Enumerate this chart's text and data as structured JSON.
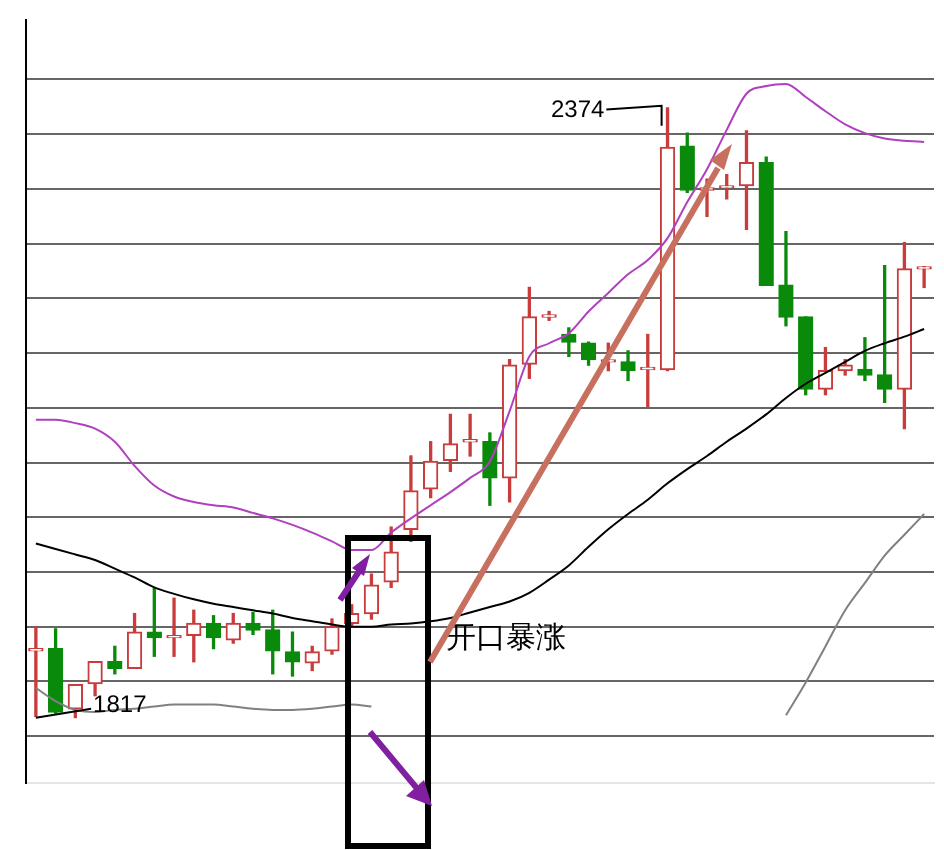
{
  "chart_data": {
    "type": "candlestick",
    "categories": [
      null,
      null,
      null,
      null,
      null,
      null,
      null,
      null,
      null,
      null,
      null,
      null,
      null,
      null,
      null,
      null,
      null,
      null,
      null,
      null,
      null,
      null,
      null,
      null,
      null,
      null,
      null,
      null,
      null,
      null,
      null,
      null,
      null,
      null,
      null,
      null,
      null,
      null,
      null,
      null,
      null,
      null,
      null,
      null,
      null,
      null
    ],
    "ohlc": [
      [
        1878,
        1900,
        1818,
        1879
      ],
      [
        1880,
        1898,
        1821,
        1822
      ],
      [
        1825,
        1847,
        1817,
        1847
      ],
      [
        1848,
        1868,
        1837,
        1868
      ],
      [
        1868,
        1882,
        1857,
        1862
      ],
      [
        1862,
        1912,
        1862,
        1895
      ],
      [
        1895,
        1935,
        1873,
        1890
      ],
      [
        1890,
        1926,
        1873,
        1891
      ],
      [
        1892,
        1915,
        1868,
        1903
      ],
      [
        1903,
        1910,
        1880,
        1890
      ],
      [
        1888,
        1912,
        1885,
        1903
      ],
      [
        1903,
        1913,
        1893,
        1897
      ],
      [
        1897,
        1915,
        1857,
        1878
      ],
      [
        1877,
        1895,
        1855,
        1868
      ],
      [
        1867,
        1882,
        1860,
        1877
      ],
      [
        1878,
        1907,
        1875,
        1900
      ],
      [
        1903,
        1920,
        1900,
        1912
      ],
      [
        1912,
        1948,
        1907,
        1938
      ],
      [
        1941,
        1991,
        1936,
        1968
      ],
      [
        1989,
        2056,
        1978,
        2024
      ],
      [
        2026,
        2069,
        2018,
        2051
      ],
      [
        2052,
        2094,
        2042,
        2067
      ],
      [
        2069,
        2094,
        2056,
        2070
      ],
      [
        2069,
        2077,
        2011,
        2036
      ],
      [
        2036,
        2144,
        2014,
        2139
      ],
      [
        2140,
        2210,
        2127,
        2183
      ],
      [
        2183,
        2188,
        2180,
        2184
      ],
      [
        2167,
        2173,
        2147,
        2160
      ],
      [
        2159,
        2160,
        2139,
        2144
      ],
      [
        2142,
        2159,
        2134,
        2143
      ],
      [
        2142,
        2152,
        2125,
        2134
      ],
      [
        2135,
        2167,
        2101,
        2136
      ],
      [
        2135,
        2374,
        2134,
        2338
      ],
      [
        2339,
        2351,
        2297,
        2299
      ],
      [
        2299,
        2309,
        2275,
        2301
      ],
      [
        2301,
        2313,
        2291,
        2302
      ],
      [
        2303,
        2353,
        2263,
        2324
      ],
      [
        2324,
        2329,
        2212,
        2212
      ],
      [
        2212,
        2261,
        2175,
        2183
      ],
      [
        2183,
        2183,
        2112,
        2117
      ],
      [
        2117,
        2155,
        2112,
        2134
      ],
      [
        2134,
        2144,
        2130,
        2139
      ],
      [
        2135,
        2164,
        2125,
        2130
      ],
      [
        2130,
        2230,
        2105,
        2117
      ],
      [
        2117,
        2251,
        2081,
        2227
      ],
      [
        2227,
        2229,
        2210,
        2228
      ]
    ],
    "colors": [
      "#c83c3c",
      "#0a8a0a",
      "#c83c3c",
      "#c83c3c",
      "#0a8a0a",
      "#c83c3c",
      "#0a8a0a",
      "#c83c3c",
      "#c83c3c",
      "#0a8a0a",
      "#c83c3c",
      "#0a8a0a",
      "#0a8a0a",
      "#0a8a0a",
      "#c83c3c",
      "#c83c3c",
      "#c83c3c",
      "#c83c3c",
      "#c83c3c",
      "#c83c3c",
      "#c83c3c",
      "#c83c3c",
      "#c83c3c",
      "#0a8a0a",
      "#c83c3c",
      "#c83c3c",
      "#c83c3c",
      "#0a8a0a",
      "#0a8a0a",
      "#c83c3c",
      "#0a8a0a",
      "#c83c3c",
      "#c83c3c",
      "#0a8a0a",
      "#c83c3c",
      "#c83c3c",
      "#c83c3c",
      "#0a8a0a",
      "#0a8a0a",
      "#0a8a0a",
      "#c83c3c",
      "#c83c3c",
      "#0a8a0a",
      "#0a8a0a",
      "#c83c3c",
      "#c83c3c"
    ],
    "series": [
      {
        "type": "line",
        "color": "#b040c0",
        "values": [
          2089,
          2089,
          2086,
          2081,
          2069,
          2047,
          2029,
          2019,
          2014,
          2011,
          2009,
          2004,
          1999,
          1993,
          1986,
          1978,
          1970,
          1970,
          1986,
          1999,
          2011,
          2023,
          2036,
          2051,
          2097,
          2147,
          2159,
          2168,
          2188,
          2205,
          2222,
          2235,
          2255,
          2288,
          2318,
          2354,
          2387,
          2394,
          2396,
          2384,
          2371,
          2359,
          2351,
          2346,
          2344,
          2343
        ]
      },
      {
        "type": "line",
        "color": "#000000",
        "values": [
          1976,
          1971,
          1966,
          1961,
          1953,
          1945,
          1936,
          1930,
          1925,
          1921,
          1918,
          1915,
          1912,
          1908,
          1905,
          1902,
          1900,
          1900,
          1902,
          1903,
          1905,
          1908,
          1913,
          1918,
          1923,
          1931,
          1943,
          1956,
          1973,
          1989,
          2003,
          2016,
          2031,
          2044,
          2056,
          2069,
          2081,
          2094,
          2109,
          2122,
          2132,
          2142,
          2152,
          2159,
          2165,
          2172
        ]
      },
      {
        "type": "line",
        "color": "#808080",
        "values": [
          1844,
          1832,
          1824,
          1822,
          1824,
          1825,
          1827,
          1829,
          1829,
          1829,
          1827,
          1825,
          1824,
          1824,
          1825,
          1827,
          1829,
          1827,
          null,
          null,
          null,
          null,
          null,
          null,
          null,
          null,
          null,
          null,
          null,
          null,
          null,
          null,
          null,
          null,
          null,
          null,
          null,
          null,
          1819,
          1849,
          1882,
          1915,
          1940,
          1965,
          1984,
          2003
        ]
      }
    ],
    "ylim": [
      1757,
      2454
    ],
    "yticks": [
      {
        "value": 1800,
        "label": null
      },
      {
        "value": 1850,
        "label": null
      },
      {
        "value": 1900,
        "label": null
      },
      {
        "value": 1950,
        "label": null
      },
      {
        "value": 2000,
        "label": null
      },
      {
        "value": 2050,
        "label": null
      },
      {
        "value": 2100,
        "label": null
      },
      {
        "value": 2150,
        "label": null
      },
      {
        "value": 2200,
        "label": null
      },
      {
        "value": 2250,
        "label": null
      },
      {
        "value": 2300,
        "label": null
      },
      {
        "value": 2350,
        "label": null
      },
      {
        "value": 2400,
        "label": null
      }
    ],
    "grid": "y",
    "marker": "none",
    "annotations": [
      "2374",
      "1817",
      "开口暴涨"
    ]
  }
}
